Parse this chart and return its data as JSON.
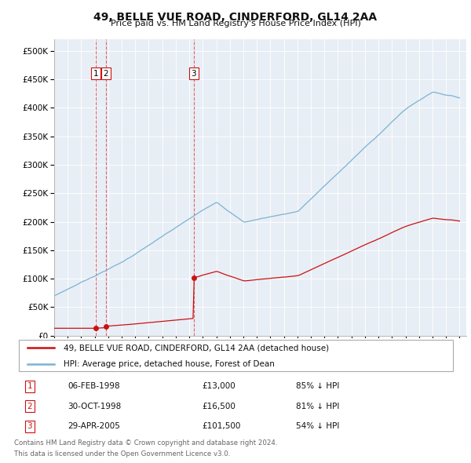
{
  "title": "49, BELLE VUE ROAD, CINDERFORD, GL14 2AA",
  "subtitle": "Price paid vs. HM Land Registry's House Price Index (HPI)",
  "plot_bg_color": "#e8eef5",
  "grid_color": "#ffffff",
  "hpi_color": "#7ab3d4",
  "price_color": "#cc1111",
  "vline_color": "#dd4444",
  "purchases": [
    {
      "date_num": 1998.09,
      "price": 13000,
      "label": "1"
    },
    {
      "date_num": 1998.83,
      "price": 16500,
      "label": "2"
    },
    {
      "date_num": 2005.33,
      "price": 101500,
      "label": "3"
    }
  ],
  "purchase_labels": [
    {
      "num": "1",
      "date": "06-FEB-1998",
      "price": "£13,000",
      "pct": "85% ↓ HPI"
    },
    {
      "num": "2",
      "date": "30-OCT-1998",
      "price": "£16,500",
      "pct": "81% ↓ HPI"
    },
    {
      "num": "3",
      "date": "29-APR-2005",
      "price": "£101,500",
      "pct": "54% ↓ HPI"
    }
  ],
  "legend_line1": "49, BELLE VUE ROAD, CINDERFORD, GL14 2AA (detached house)",
  "legend_line2": "HPI: Average price, detached house, Forest of Dean",
  "footer1": "Contains HM Land Registry data © Crown copyright and database right 2024.",
  "footer2": "This data is licensed under the Open Government Licence v3.0.",
  "xmin": 1995.0,
  "xmax": 2025.5,
  "ymin": 0,
  "ymax": 520000,
  "yticks": [
    0,
    50000,
    100000,
    150000,
    200000,
    250000,
    300000,
    350000,
    400000,
    450000,
    500000
  ]
}
